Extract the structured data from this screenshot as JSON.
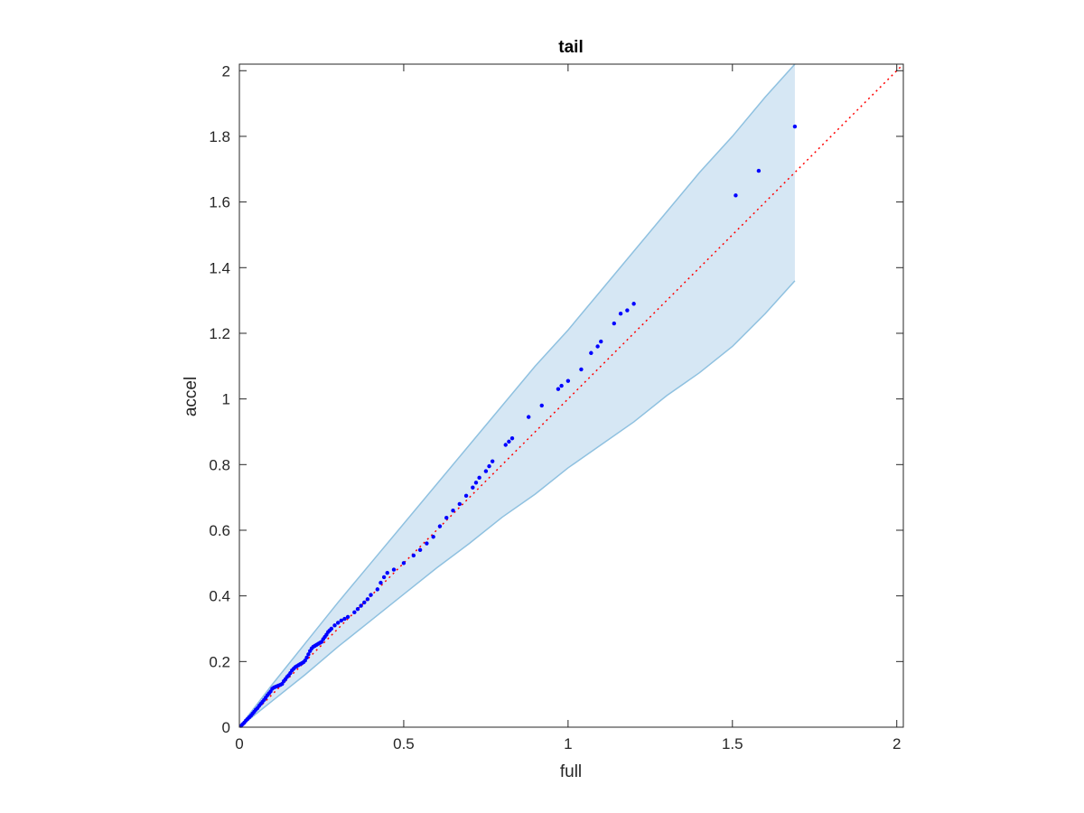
{
  "chart_data": {
    "type": "scatter",
    "title": "tail",
    "xlabel": "full",
    "ylabel": "accel",
    "xlim": [
      0,
      2.02
    ],
    "ylim": [
      0,
      2.02
    ],
    "xticks": [
      0,
      0.5,
      1,
      1.5,
      2
    ],
    "xtick_labels": [
      "0",
      "0.5",
      "1",
      "1.5",
      "2"
    ],
    "yticks": [
      0,
      0.2,
      0.4,
      0.6,
      0.8,
      1,
      1.2,
      1.4,
      1.6,
      1.8,
      2
    ],
    "ytick_labels": [
      "0",
      "0.2",
      "0.4",
      "0.6",
      "0.8",
      "1",
      "1.2",
      "1.4",
      "1.6",
      "1.8",
      "2"
    ],
    "grid": false,
    "colors": {
      "points": "#0000ff",
      "reference_line": "#ff0000",
      "band_fill": "#d6e7f4",
      "band_edge": "#8fc1e0",
      "axes": "#262626"
    },
    "confidence_band": {
      "x": [
        0,
        0.1,
        0.2,
        0.3,
        0.4,
        0.5,
        0.6,
        0.7,
        0.8,
        0.9,
        1.0,
        1.1,
        1.2,
        1.3,
        1.4,
        1.5,
        1.6,
        1.69
      ],
      "upper": [
        0,
        0.13,
        0.255,
        0.38,
        0.5,
        0.62,
        0.74,
        0.86,
        0.98,
        1.1,
        1.21,
        1.33,
        1.45,
        1.57,
        1.69,
        1.8,
        1.92,
        2.02
      ],
      "lower": [
        0,
        0.08,
        0.16,
        0.245,
        0.325,
        0.405,
        0.485,
        0.56,
        0.64,
        0.71,
        0.79,
        0.86,
        0.93,
        1.01,
        1.08,
        1.16,
        1.26,
        1.36
      ]
    },
    "reference_line": {
      "x": [
        0,
        2.02
      ],
      "y": [
        0,
        2.02
      ],
      "style": "dotted"
    },
    "series": [
      {
        "x": [
          0.005,
          0.01,
          0.015,
          0.02,
          0.025,
          0.03,
          0.035,
          0.04,
          0.045,
          0.05,
          0.055,
          0.06,
          0.065,
          0.07,
          0.075,
          0.08,
          0.085,
          0.09,
          0.095,
          0.1,
          0.105,
          0.11,
          0.115,
          0.12,
          0.125,
          0.13,
          0.135,
          0.14,
          0.145,
          0.15,
          0.155,
          0.16,
          0.165,
          0.17,
          0.175,
          0.18,
          0.185,
          0.19,
          0.195,
          0.2,
          0.205,
          0.21,
          0.215,
          0.22,
          0.225,
          0.23,
          0.235,
          0.24,
          0.245,
          0.25,
          0.255,
          0.26,
          0.265,
          0.27,
          0.275,
          0.28,
          0.29,
          0.3,
          0.31,
          0.32,
          0.33,
          0.35,
          0.36,
          0.37,
          0.38,
          0.39,
          0.4,
          0.42,
          0.43,
          0.44,
          0.45,
          0.47,
          0.5,
          0.53,
          0.55,
          0.57,
          0.59,
          0.61,
          0.63,
          0.65,
          0.67,
          0.69,
          0.71,
          0.72,
          0.73,
          0.75,
          0.76,
          0.77,
          0.81,
          0.82,
          0.83,
          0.88,
          0.92,
          0.97,
          0.98,
          1.0,
          1.04,
          1.07,
          1.09,
          1.1,
          1.14,
          1.16,
          1.18,
          1.2,
          1.51,
          1.58,
          1.69
        ],
        "y": [
          0.004,
          0.009,
          0.014,
          0.02,
          0.025,
          0.03,
          0.035,
          0.041,
          0.047,
          0.053,
          0.058,
          0.065,
          0.071,
          0.077,
          0.083,
          0.09,
          0.097,
          0.103,
          0.109,
          0.117,
          0.121,
          0.123,
          0.125,
          0.127,
          0.129,
          0.132,
          0.14,
          0.146,
          0.153,
          0.158,
          0.165,
          0.173,
          0.178,
          0.183,
          0.186,
          0.189,
          0.192,
          0.195,
          0.198,
          0.203,
          0.212,
          0.222,
          0.232,
          0.24,
          0.245,
          0.248,
          0.251,
          0.254,
          0.257,
          0.26,
          0.268,
          0.275,
          0.282,
          0.29,
          0.295,
          0.3,
          0.31,
          0.318,
          0.325,
          0.33,
          0.336,
          0.35,
          0.36,
          0.37,
          0.38,
          0.39,
          0.403,
          0.42,
          0.44,
          0.457,
          0.47,
          0.48,
          0.5,
          0.523,
          0.54,
          0.56,
          0.58,
          0.612,
          0.638,
          0.66,
          0.68,
          0.705,
          0.73,
          0.745,
          0.76,
          0.78,
          0.795,
          0.81,
          0.86,
          0.87,
          0.88,
          0.945,
          0.98,
          1.03,
          1.04,
          1.055,
          1.09,
          1.14,
          1.16,
          1.175,
          1.23,
          1.26,
          1.27,
          1.29,
          1.62,
          1.695,
          1.83
        ]
      }
    ]
  }
}
